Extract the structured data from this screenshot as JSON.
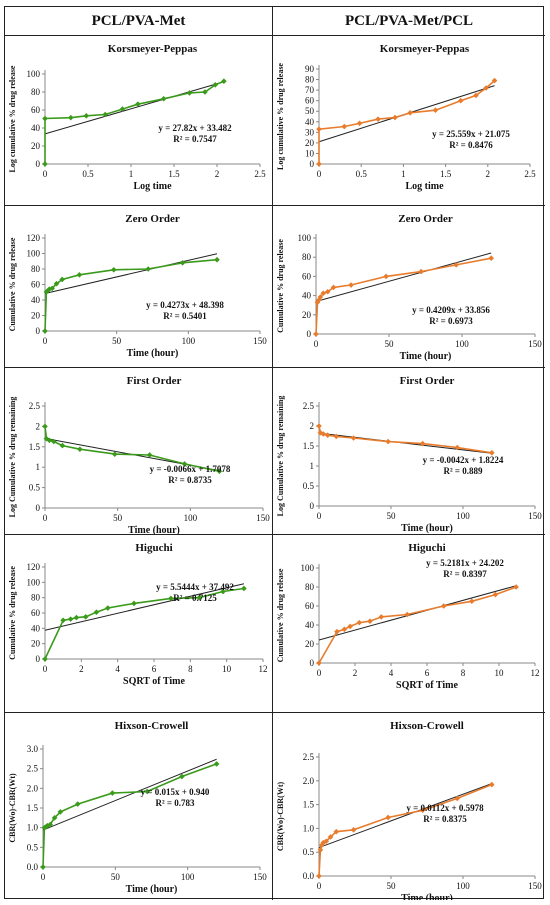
{
  "headers": {
    "left": "PCL/PVA-Met",
    "right": "PCL/PVA-Met/PCL"
  },
  "colors": {
    "left_series": "#3a9a1a",
    "right_series": "#e87c2c",
    "trend": "#222222"
  },
  "chart_data": [
    {
      "type": "scatter",
      "title": "Korsmeyer-Peppas",
      "xlabel": "Log time",
      "ylabel": "Log cumulative % drug release",
      "xlim": [
        0,
        2.5
      ],
      "xticks": [
        0,
        0.5,
        1,
        1.5,
        2,
        2.5
      ],
      "ylim": [
        0,
        100
      ],
      "yticks": [
        0,
        20,
        40,
        60,
        80,
        100
      ],
      "series_color": "left",
      "points": [
        [
          0,
          0
        ],
        [
          0.0,
          50.5
        ],
        [
          0.3,
          51.5
        ],
        [
          0.48,
          53.5
        ],
        [
          0.7,
          55
        ],
        [
          0.9,
          61
        ],
        [
          1.08,
          66.5
        ],
        [
          1.38,
          72.5
        ],
        [
          1.68,
          79
        ],
        [
          1.86,
          80
        ],
        [
          1.98,
          88
        ],
        [
          2.08,
          92
        ]
      ],
      "fit": {
        "slope": 27.82,
        "intercept": 33.482,
        "xrange": [
          0,
          2.08
        ]
      },
      "equation": "y = 27.82x + 33.482",
      "r2": "R² = 0.7547"
    },
    {
      "type": "scatter",
      "title": "Korsmeyer-Peppas",
      "xlabel": "Log time",
      "ylabel": "Log cumulative % drug release",
      "xlim": [
        0,
        2.5
      ],
      "xticks": [
        0,
        0.5,
        1,
        1.5,
        2,
        2.5
      ],
      "ylim": [
        0,
        90
      ],
      "yticks": [
        0,
        10,
        20,
        30,
        40,
        50,
        60,
        70,
        80,
        90
      ],
      "series_color": "right",
      "points": [
        [
          0,
          0
        ],
        [
          0.0,
          33
        ],
        [
          0.3,
          35.5
        ],
        [
          0.48,
          38.5
        ],
        [
          0.7,
          42.5
        ],
        [
          0.9,
          44
        ],
        [
          1.08,
          48.5
        ],
        [
          1.38,
          51
        ],
        [
          1.68,
          60
        ],
        [
          1.86,
          65
        ],
        [
          1.98,
          72
        ],
        [
          2.08,
          79
        ]
      ],
      "fit": {
        "slope": 25.559,
        "intercept": 21.075,
        "xrange": [
          0,
          2.08
        ]
      },
      "equation": "y = 25.559x + 21.075",
      "r2": "R² = 0.8476"
    },
    {
      "type": "scatter",
      "title": "Zero Order",
      "xlabel": "Time (hour)",
      "ylabel": "Cumulative % drug release",
      "xlim": [
        0,
        150
      ],
      "xticks": [
        0,
        50,
        100,
        150
      ],
      "ylim": [
        0,
        120
      ],
      "yticks": [
        0,
        20,
        40,
        60,
        80,
        100,
        120
      ],
      "series_color": "left",
      "points": [
        [
          0,
          0
        ],
        [
          1,
          50.5
        ],
        [
          2,
          52
        ],
        [
          3,
          54
        ],
        [
          5,
          55
        ],
        [
          8,
          61
        ],
        [
          12,
          66.5
        ],
        [
          24,
          72.5
        ],
        [
          48,
          79
        ],
        [
          72,
          80
        ],
        [
          96,
          88
        ],
        [
          120,
          92
        ]
      ],
      "fit": {
        "slope": 0.4273,
        "intercept": 48.398,
        "xrange": [
          0,
          120
        ]
      },
      "equation": "y = 0.4273x + 48.398",
      "r2": "R² = 0.5401"
    },
    {
      "type": "scatter",
      "title": "Zero Order",
      "xlabel": "Time (hour)",
      "ylabel": "Cumulative % drug release",
      "xlim": [
        0,
        150
      ],
      "xticks": [
        0,
        50,
        100,
        150
      ],
      "ylim": [
        0,
        100
      ],
      "yticks": [
        0,
        20,
        40,
        60,
        80,
        100
      ],
      "series_color": "right",
      "points": [
        [
          0,
          0
        ],
        [
          1,
          33
        ],
        [
          2,
          35.5
        ],
        [
          3,
          38.5
        ],
        [
          5,
          42.5
        ],
        [
          8,
          44
        ],
        [
          12,
          48.5
        ],
        [
          24,
          51
        ],
        [
          48,
          60
        ],
        [
          72,
          65
        ],
        [
          96,
          72
        ],
        [
          120,
          79
        ]
      ],
      "fit": {
        "slope": 0.4209,
        "intercept": 33.856,
        "xrange": [
          0,
          120
        ]
      },
      "equation": "y = 0.4209x + 33.856",
      "r2": "R² = 0.6973"
    },
    {
      "type": "scatter",
      "title": "First Order",
      "xlabel": "Time (hour)",
      "ylabel": "Log Cumulative % drug remaining",
      "xlim": [
        0,
        150
      ],
      "xticks": [
        0,
        50,
        100,
        150
      ],
      "ylim": [
        0,
        2.5
      ],
      "yticks": [
        0,
        0.5,
        1,
        1.5,
        2,
        2.5
      ],
      "series_color": "left",
      "points": [
        [
          0,
          2.0
        ],
        [
          1,
          1.7
        ],
        [
          3,
          1.66
        ],
        [
          6,
          1.63
        ],
        [
          12,
          1.53
        ],
        [
          24,
          1.44
        ],
        [
          48,
          1.32
        ],
        [
          72,
          1.3
        ],
        [
          96,
          1.08
        ],
        [
          120,
          0.9
        ]
      ],
      "fit": {
        "slope": -0.0066,
        "intercept": 1.7078,
        "xrange": [
          0,
          120
        ]
      },
      "equation": "y = -0.0066x + 1.7078",
      "r2": "R² = 0.8735"
    },
    {
      "type": "scatter",
      "title": "First Order",
      "xlabel": "Time (hour)",
      "ylabel": "Log Cumulative % drug remaining",
      "xlim": [
        0,
        150
      ],
      "xticks": [
        0,
        50,
        100,
        150
      ],
      "ylim": [
        0,
        2.5
      ],
      "yticks": [
        0,
        0.5,
        1,
        1.5,
        2,
        2.5
      ],
      "series_color": "right",
      "points": [
        [
          0,
          2.0
        ],
        [
          1,
          1.83
        ],
        [
          3,
          1.8
        ],
        [
          6,
          1.77
        ],
        [
          12,
          1.74
        ],
        [
          24,
          1.7
        ],
        [
          48,
          1.61
        ],
        [
          72,
          1.56
        ],
        [
          96,
          1.46
        ],
        [
          120,
          1.33
        ]
      ],
      "fit": {
        "slope": -0.0042,
        "intercept": 1.8224,
        "xrange": [
          0,
          120
        ]
      },
      "equation": "y = -0.0042x + 1.8224",
      "r2": "R² = 0.889"
    },
    {
      "type": "scatter",
      "title": "Higuchi",
      "xlabel": "SQRT of Time",
      "ylabel": "Cumulative % drug release",
      "xlim": [
        0,
        12
      ],
      "xticks": [
        0,
        2,
        4,
        6,
        8,
        10,
        12
      ],
      "ylim": [
        0,
        120
      ],
      "yticks": [
        0,
        20,
        40,
        60,
        80,
        100,
        120
      ],
      "series_color": "left",
      "points": [
        [
          0,
          0
        ],
        [
          1,
          50.5
        ],
        [
          1.41,
          52
        ],
        [
          1.73,
          54
        ],
        [
          2.24,
          55
        ],
        [
          2.83,
          61
        ],
        [
          3.46,
          66.5
        ],
        [
          4.9,
          72.5
        ],
        [
          6.93,
          79
        ],
        [
          8.49,
          80
        ],
        [
          9.8,
          88
        ],
        [
          10.95,
          92
        ]
      ],
      "fit": {
        "slope": 5.5444,
        "intercept": 37.492,
        "xrange": [
          0,
          10.95
        ]
      },
      "equation": "y = 5.5444x + 37.492",
      "r2": "R² = 0.7125"
    },
    {
      "type": "scatter",
      "title": "Higuchi",
      "xlabel": "SQRT of Time",
      "ylabel": "Cumulative % drug release",
      "xlim": [
        0,
        12
      ],
      "xticks": [
        0,
        2,
        4,
        6,
        8,
        10,
        12
      ],
      "ylim": [
        0,
        100
      ],
      "yticks": [
        0,
        20,
        40,
        60,
        80,
        100
      ],
      "series_color": "right",
      "points": [
        [
          0,
          0
        ],
        [
          1,
          33
        ],
        [
          1.41,
          35.5
        ],
        [
          1.73,
          38.5
        ],
        [
          2.24,
          42.5
        ],
        [
          2.83,
          44
        ],
        [
          3.46,
          48.5
        ],
        [
          4.9,
          51
        ],
        [
          6.93,
          60
        ],
        [
          8.49,
          65
        ],
        [
          9.8,
          72
        ],
        [
          10.95,
          80
        ]
      ],
      "fit": {
        "slope": 5.2181,
        "intercept": 24.202,
        "xrange": [
          0,
          10.95
        ]
      },
      "equation": "y = 5.2181x + 24.202",
      "r2": "R² = 0.8397"
    },
    {
      "type": "scatter",
      "title": "Hixson-Crowell",
      "xlabel": "Time (hour)",
      "ylabel": "CBR(Wo)-CBR(Wt)",
      "xlim": [
        0,
        150
      ],
      "xticks": [
        0,
        50,
        100,
        150
      ],
      "ylim": [
        0,
        3.0
      ],
      "yticks": [
        0,
        0.5,
        1,
        1.5,
        2,
        2.5,
        3
      ],
      "ytick_format": "fixed1",
      "series_color": "left",
      "points": [
        [
          0,
          0
        ],
        [
          1,
          1.0
        ],
        [
          2,
          1.02
        ],
        [
          3,
          1.05
        ],
        [
          5,
          1.08
        ],
        [
          8,
          1.25
        ],
        [
          12,
          1.4
        ],
        [
          24,
          1.6
        ],
        [
          48,
          1.88
        ],
        [
          72,
          1.92
        ],
        [
          96,
          2.3
        ],
        [
          120,
          2.62
        ]
      ],
      "fit": {
        "slope": 0.015,
        "intercept": 0.94,
        "xrange": [
          0,
          120
        ]
      },
      "equation": "y = 0.015x + 0.940",
      "r2": "R² = 0.783"
    },
    {
      "type": "scatter",
      "title": "Hixson-Crowell",
      "xlabel": "Time (hour)",
      "ylabel": "CBR(Wo)-CBR(Wt)",
      "xlim": [
        0,
        150
      ],
      "xticks": [
        0,
        50,
        100,
        150
      ],
      "ylim": [
        0,
        2.5
      ],
      "yticks": [
        0,
        0.5,
        1,
        1.5,
        2,
        2.5
      ],
      "ytick_format": "fixed1",
      "series_color": "right",
      "points": [
        [
          0,
          0
        ],
        [
          1,
          0.55
        ],
        [
          2,
          0.65
        ],
        [
          3,
          0.7
        ],
        [
          5,
          0.73
        ],
        [
          8,
          0.82
        ],
        [
          12,
          0.93
        ],
        [
          24,
          0.97
        ],
        [
          48,
          1.23
        ],
        [
          72,
          1.38
        ],
        [
          96,
          1.63
        ],
        [
          120,
          1.92
        ]
      ],
      "fit": {
        "slope": 0.0112,
        "intercept": 0.5978,
        "xrange": [
          0,
          120
        ]
      },
      "equation": "y = 0.0112x + 0.5978",
      "r2": "R² = 0.8375"
    }
  ]
}
